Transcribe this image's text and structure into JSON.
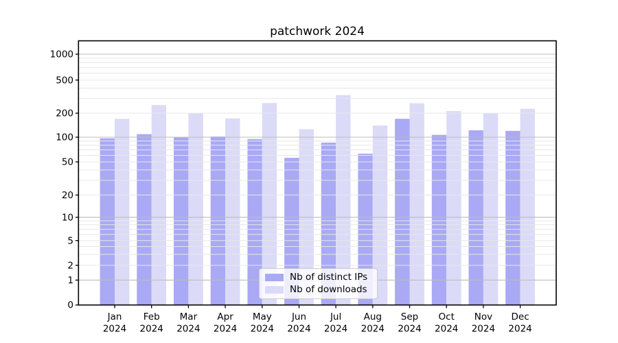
{
  "figure": {
    "title": "patchwork 2024",
    "background": "#ffffff"
  },
  "colors": {
    "ips_bar": "#a9a9f5",
    "downloads_bar": "#dbdbf8",
    "grid_major": "#bcbcbc",
    "grid_minor": "#e7e7e7",
    "spine": "#000000",
    "text": "#000000",
    "legend_border": "#cccccc"
  },
  "chart_data": {
    "type": "bar",
    "title": "patchwork 2024",
    "categories": [
      "Jan 2024",
      "Feb 2024",
      "Mar 2024",
      "Apr 2024",
      "May 2024",
      "Jun 2024",
      "Jul 2024",
      "Aug 2024",
      "Sep 2024",
      "Oct 2024",
      "Nov 2024",
      "Dec 2024"
    ],
    "series": [
      {
        "name": "Nb of distinct IPs",
        "color": "#a9a9f5",
        "values": [
          97,
          109,
          100,
          102,
          95,
          56,
          86,
          63,
          170,
          107,
          122,
          120
        ]
      },
      {
        "name": "Nb of downloads",
        "color": "#dbdbf8",
        "values": [
          170,
          250,
          201,
          172,
          265,
          126,
          330,
          140,
          263,
          212,
          200,
          226
        ]
      }
    ],
    "xlabel": "",
    "ylabel": "",
    "yscale": "symlog (linear 0-1, log above 1)",
    "y_ticks": [
      0,
      1,
      2,
      5,
      10,
      20,
      50,
      100,
      200,
      500,
      1000
    ],
    "ylim": [
      0,
      1450
    ],
    "grid": true,
    "legend": {
      "position": "lower center",
      "items": [
        "Nb of distinct IPs",
        "Nb of downloads"
      ]
    }
  }
}
